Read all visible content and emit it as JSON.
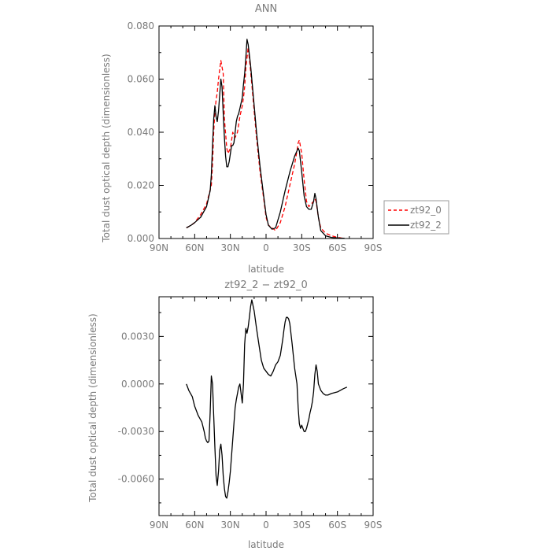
{
  "chart_data": [
    {
      "type": "line",
      "title": "ANN",
      "xlabel": "latitude",
      "ylabel": "Total dust optical depth (dimensionless)",
      "xlim": [
        90,
        -90
      ],
      "ylim": [
        0,
        0.08
      ],
      "x_ticks": [
        90,
        60,
        30,
        0,
        -30,
        -60,
        -90
      ],
      "x_tick_labels": [
        "90N",
        "60N",
        "30N",
        "0",
        "30S",
        "60S",
        "90S"
      ],
      "y_ticks": [
        0,
        0.02,
        0.04,
        0.06,
        0.08
      ],
      "y_tick_labels": [
        "0.000",
        "0.020",
        "0.040",
        "0.060",
        "0.080"
      ],
      "legend_position": "right",
      "series": [
        {
          "name": "zt92_0",
          "color": "#ff0000",
          "dashed": true,
          "x": [
            67,
            63,
            60,
            55,
            50,
            46,
            45,
            44,
            43,
            42,
            41,
            40,
            38,
            36,
            35,
            33,
            32,
            30,
            28,
            26,
            24,
            22,
            20,
            19,
            18,
            17,
            15,
            13,
            10,
            8,
            5,
            2,
            0,
            -2,
            -5,
            -8,
            -12,
            -16,
            -20,
            -24,
            -26,
            -27,
            -28,
            -30,
            -32,
            -34,
            -36,
            -38,
            -40,
            -41,
            -42,
            -44,
            -46,
            -50,
            -55,
            -60,
            -63,
            -66
          ],
          "y": [
            0.004,
            0.005,
            0.006,
            0.009,
            0.013,
            0.02,
            0.028,
            0.04,
            0.048,
            0.052,
            0.055,
            0.06,
            0.067,
            0.062,
            0.045,
            0.034,
            0.032,
            0.034,
            0.04,
            0.038,
            0.04,
            0.046,
            0.05,
            0.053,
            0.057,
            0.064,
            0.072,
            0.063,
            0.048,
            0.038,
            0.025,
            0.015,
            0.008,
            0.005,
            0.004,
            0.003,
            0.006,
            0.012,
            0.02,
            0.028,
            0.033,
            0.036,
            0.037,
            0.032,
            0.022,
            0.014,
            0.012,
            0.013,
            0.014,
            0.015,
            0.014,
            0.008,
            0.004,
            0.002,
            0.001,
            0.0004,
            0.0002,
            0.0001
          ]
        },
        {
          "name": "zt92_2",
          "color": "#000000",
          "dashed": false,
          "x": [
            67,
            63,
            60,
            55,
            50,
            47,
            46,
            45,
            44,
            43,
            42,
            41,
            40,
            39,
            38,
            37,
            36,
            35,
            34,
            33,
            32,
            31,
            30,
            29,
            28,
            27,
            26,
            25,
            24,
            23,
            22,
            21,
            20,
            19,
            18,
            17,
            16,
            15,
            13,
            10,
            8,
            5,
            2,
            0,
            -2,
            -5,
            -8,
            -12,
            -16,
            -20,
            -24,
            -26,
            -27,
            -28,
            -30,
            -32,
            -34,
            -36,
            -38,
            -40,
            -41,
            -42,
            -44,
            -46,
            -50,
            -55,
            -60,
            -63,
            -66
          ],
          "y": [
            0.004,
            0.005,
            0.006,
            0.008,
            0.012,
            0.018,
            0.024,
            0.035,
            0.045,
            0.05,
            0.046,
            0.044,
            0.048,
            0.054,
            0.06,
            0.057,
            0.047,
            0.038,
            0.031,
            0.027,
            0.027,
            0.029,
            0.032,
            0.035,
            0.035,
            0.036,
            0.04,
            0.044,
            0.046,
            0.047,
            0.049,
            0.051,
            0.053,
            0.058,
            0.062,
            0.068,
            0.075,
            0.073,
            0.065,
            0.05,
            0.04,
            0.027,
            0.016,
            0.009,
            0.005,
            0.0035,
            0.004,
            0.01,
            0.018,
            0.025,
            0.031,
            0.033,
            0.034,
            0.033,
            0.025,
            0.016,
            0.012,
            0.011,
            0.011,
            0.014,
            0.017,
            0.015,
            0.008,
            0.003,
            0.001,
            0.0004,
            0.0002,
            0.0001,
            0.0001
          ]
        }
      ]
    },
    {
      "type": "line",
      "title": "zt92_2 − zt92_0",
      "xlabel": "latitude",
      "ylabel": "Total dust optical depth (dimensionless)",
      "xlim": [
        90,
        -90
      ],
      "ylim": [
        -0.0083,
        0.0055
      ],
      "x_ticks": [
        90,
        60,
        30,
        0,
        -30,
        -60,
        -90
      ],
      "x_tick_labels": [
        "90N",
        "60N",
        "30N",
        "0",
        "30S",
        "60S",
        "90S"
      ],
      "y_ticks": [
        -0.006,
        -0.003,
        0,
        0.003
      ],
      "y_tick_labels": [
        "-0.0060",
        "-0.0030",
        "0.0000",
        "0.0030"
      ],
      "series": [
        {
          "name": "",
          "color": "#000000",
          "dashed": false,
          "x": [
            67,
            65,
            62,
            60,
            57,
            54,
            52,
            51,
            50,
            49,
            48,
            47,
            46,
            45,
            44,
            43,
            42,
            41,
            40,
            39,
            38,
            37,
            36,
            35,
            34,
            33,
            32,
            31,
            30,
            29,
            28,
            27,
            26,
            25,
            24,
            23,
            22,
            21,
            20,
            19,
            18,
            17,
            16,
            15,
            14,
            13,
            12,
            10,
            8,
            6,
            4,
            2,
            0,
            -2,
            -4,
            -6,
            -8,
            -10,
            -12,
            -14,
            -15,
            -16,
            -17,
            -18,
            -19,
            -20,
            -22,
            -24,
            -26,
            -27,
            -28,
            -29,
            -30,
            -31,
            -32,
            -33,
            -34,
            -35,
            -36,
            -37,
            -38,
            -39,
            -40,
            -41,
            -42,
            -43,
            -44,
            -45,
            -46,
            -48,
            -50,
            -52,
            -55,
            -60,
            -65,
            -68
          ],
          "y": [
            0.0,
            -0.0004,
            -0.0008,
            -0.0014,
            -0.002,
            -0.0024,
            -0.003,
            -0.0034,
            -0.0036,
            -0.0037,
            -0.0036,
            -0.0018,
            0.0005,
            0.0,
            -0.002,
            -0.004,
            -0.0058,
            -0.0064,
            -0.0055,
            -0.0042,
            -0.0038,
            -0.0045,
            -0.0058,
            -0.0066,
            -0.0071,
            -0.0072,
            -0.0068,
            -0.0062,
            -0.0055,
            -0.0045,
            -0.0035,
            -0.0025,
            -0.0015,
            -0.001,
            -0.0006,
            -0.0002,
            0.0,
            -0.0006,
            -0.0012,
            0.0,
            0.0025,
            0.0035,
            0.0032,
            0.0036,
            0.0042,
            0.0049,
            0.0053,
            0.0046,
            0.0035,
            0.0025,
            0.0015,
            0.001,
            0.0008,
            0.0006,
            0.0005,
            0.0008,
            0.0012,
            0.0014,
            0.0018,
            0.0028,
            0.0034,
            0.0039,
            0.0042,
            0.0042,
            0.0041,
            0.0038,
            0.0025,
            0.001,
            0.0,
            -0.0015,
            -0.0025,
            -0.0028,
            -0.0026,
            -0.0028,
            -0.003,
            -0.003,
            -0.0028,
            -0.0025,
            -0.0022,
            -0.0018,
            -0.0015,
            -0.0011,
            -0.0005,
            0.0006,
            0.0012,
            0.0008,
            0.0,
            -0.0002,
            -0.0004,
            -0.0006,
            -0.0007,
            -0.0007,
            -0.0006,
            -0.0005,
            -0.0003,
            -0.0002
          ]
        }
      ]
    }
  ]
}
